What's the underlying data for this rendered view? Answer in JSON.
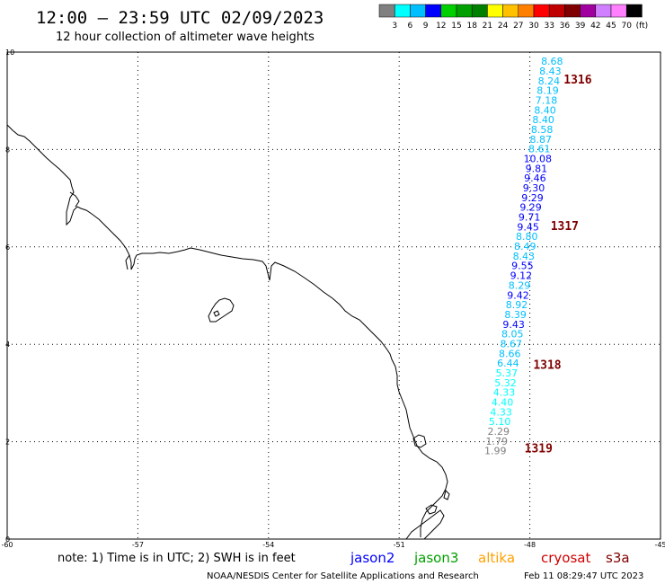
{
  "header": {
    "title": "12:00 – 23:59 UTC 02/09/2023",
    "subtitle": "12 hour collection of altimeter wave heights"
  },
  "color_scale": {
    "colors": [
      "#808080",
      "#00ffff",
      "#00bfff",
      "#0000ff",
      "#00d000",
      "#00a000",
      "#008000",
      "#ffff00",
      "#ffc000",
      "#ff8000",
      "#ff0000",
      "#c00000",
      "#800000",
      "#a000a0",
      "#d080ff",
      "#ff80ff",
      "#000000"
    ],
    "labels": [
      "3",
      "6",
      "9",
      "12",
      "15",
      "18",
      "21",
      "24",
      "27",
      "30",
      "33",
      "36",
      "39",
      "42",
      "45",
      "70",
      "(ft)"
    ]
  },
  "map": {
    "lon_range": [
      -60,
      -45
    ],
    "lat_range": [
      0,
      10
    ],
    "x_ticks": [
      {
        "value": -60,
        "label": "-60"
      },
      {
        "value": -57,
        "label": "-57"
      },
      {
        "value": -54,
        "label": "-54"
      },
      {
        "value": -51,
        "label": "-51"
      },
      {
        "value": -48,
        "label": "-48"
      },
      {
        "value": -45,
        "label": "-45"
      }
    ],
    "y_ticks": [
      {
        "value": 0,
        "label": "0"
      },
      {
        "value": 2,
        "label": "2"
      },
      {
        "value": 4,
        "label": "4"
      },
      {
        "value": 6,
        "label": "6"
      },
      {
        "value": 8,
        "label": "8"
      },
      {
        "value": 10,
        "label": "10"
      }
    ]
  },
  "observations": [
    {
      "lon": -47.49,
      "lat": 9.74,
      "value": "8.68",
      "color": "#00bfff"
    },
    {
      "lon": -47.53,
      "lat": 9.54,
      "value": "8.43",
      "color": "#00bfff"
    },
    {
      "lon": -47.56,
      "lat": 9.34,
      "value": "8.24",
      "color": "#00bfff"
    },
    {
      "lon": -47.59,
      "lat": 9.14,
      "value": "8.19",
      "color": "#00bfff"
    },
    {
      "lon": -47.62,
      "lat": 8.94,
      "value": "7.18",
      "color": "#00bfff"
    },
    {
      "lon": -47.65,
      "lat": 8.74,
      "value": "8.40",
      "color": "#00bfff"
    },
    {
      "lon": -47.69,
      "lat": 8.54,
      "value": "8.40",
      "color": "#00bfff"
    },
    {
      "lon": -47.72,
      "lat": 8.34,
      "value": "8.58",
      "color": "#00bfff"
    },
    {
      "lon": -47.75,
      "lat": 8.14,
      "value": "8.87",
      "color": "#00bfff"
    },
    {
      "lon": -47.78,
      "lat": 7.94,
      "value": "8.61",
      "color": "#00bfff"
    },
    {
      "lon": -47.82,
      "lat": 7.74,
      "value": "10.08",
      "color": "#0000ff"
    },
    {
      "lon": -47.85,
      "lat": 7.54,
      "value": "9.81",
      "color": "#0000ff"
    },
    {
      "lon": -47.88,
      "lat": 7.34,
      "value": "9.46",
      "color": "#0000ff"
    },
    {
      "lon": -47.91,
      "lat": 7.14,
      "value": "9.30",
      "color": "#0000ff"
    },
    {
      "lon": -47.94,
      "lat": 6.94,
      "value": "9.29",
      "color": "#0000ff"
    },
    {
      "lon": -47.98,
      "lat": 6.74,
      "value": "9.29",
      "color": "#0000ff"
    },
    {
      "lon": -48.01,
      "lat": 6.54,
      "value": "9.71",
      "color": "#0000ff"
    },
    {
      "lon": -48.04,
      "lat": 6.34,
      "value": "9.45",
      "color": "#0000ff"
    },
    {
      "lon": -48.07,
      "lat": 6.14,
      "value": "8.80",
      "color": "#00bfff"
    },
    {
      "lon": -48.11,
      "lat": 5.94,
      "value": "8.49",
      "color": "#00bfff"
    },
    {
      "lon": -48.14,
      "lat": 5.74,
      "value": "8.43",
      "color": "#00bfff"
    },
    {
      "lon": -48.17,
      "lat": 5.54,
      "value": "9.55",
      "color": "#0000ff"
    },
    {
      "lon": -48.2,
      "lat": 5.34,
      "value": "9.12",
      "color": "#0000ff"
    },
    {
      "lon": -48.24,
      "lat": 5.14,
      "value": "8.29",
      "color": "#00bfff"
    },
    {
      "lon": -48.27,
      "lat": 4.94,
      "value": "9.42",
      "color": "#0000ff"
    },
    {
      "lon": -48.3,
      "lat": 4.74,
      "value": "8.92",
      "color": "#00bfff"
    },
    {
      "lon": -48.33,
      "lat": 4.54,
      "value": "8.39",
      "color": "#00bfff"
    },
    {
      "lon": -48.37,
      "lat": 4.34,
      "value": "9.43",
      "color": "#0000ff"
    },
    {
      "lon": -48.4,
      "lat": 4.14,
      "value": "8.05",
      "color": "#00bfff"
    },
    {
      "lon": -48.43,
      "lat": 3.94,
      "value": "8.67",
      "color": "#00bfff"
    },
    {
      "lon": -48.46,
      "lat": 3.74,
      "value": "8.66",
      "color": "#00bfff"
    },
    {
      "lon": -48.5,
      "lat": 3.54,
      "value": "6.44",
      "color": "#00bfff"
    },
    {
      "lon": -48.53,
      "lat": 3.34,
      "value": "5.37",
      "color": "#00ffff"
    },
    {
      "lon": -48.56,
      "lat": 3.14,
      "value": "5.32",
      "color": "#00ffff"
    },
    {
      "lon": -48.59,
      "lat": 2.94,
      "value": "4.33",
      "color": "#00ffff"
    },
    {
      "lon": -48.63,
      "lat": 2.74,
      "value": "4.40",
      "color": "#00ffff"
    },
    {
      "lon": -48.66,
      "lat": 2.54,
      "value": "4.33",
      "color": "#00ffff"
    },
    {
      "lon": -48.69,
      "lat": 2.34,
      "value": "5.10",
      "color": "#00ffff"
    },
    {
      "lon": -48.72,
      "lat": 2.14,
      "value": "2.29",
      "color": "#808080"
    },
    {
      "lon": -48.76,
      "lat": 1.94,
      "value": "1.79",
      "color": "#808080"
    },
    {
      "lon": -48.79,
      "lat": 1.74,
      "value": "1.99",
      "color": "#808080"
    }
  ],
  "pass_labels": [
    {
      "lon": -46.9,
      "lat": 9.35,
      "text": "1316"
    },
    {
      "lon": -47.2,
      "lat": 6.35,
      "text": "1317"
    },
    {
      "lon": -47.6,
      "lat": 3.5,
      "text": "1318"
    },
    {
      "lon": -47.8,
      "lat": 1.78,
      "text": "1319"
    }
  ],
  "footer": {
    "note": "note: 1) Time is in UTC; 2) SWH is in feet",
    "satellites": [
      {
        "name": "jason2",
        "color": "#0000ff"
      },
      {
        "name": "jason3",
        "color": "#00a000"
      },
      {
        "name": "altika",
        "color": "#ffa000"
      },
      {
        "name": "cryosat",
        "color": "#d00000"
      },
      {
        "name": "s3a",
        "color": "#800000"
      }
    ],
    "credit": "NOAA/NESDIS Center for Satellite Applications and Research",
    "timestamp": "Feb 11 08:29:47 UTC 2023"
  }
}
